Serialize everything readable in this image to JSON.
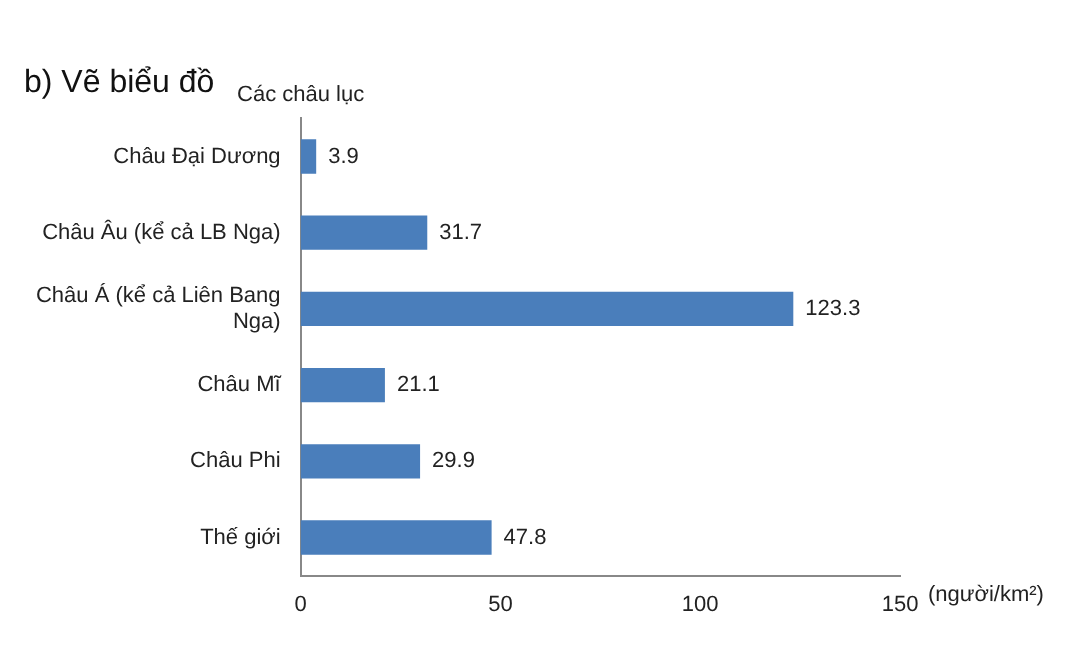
{
  "chart_data": {
    "type": "bar",
    "orientation": "horizontal",
    "title": "b) Vẽ biểu đồ",
    "ylabel": "Các châu lục",
    "xlabel": "(người/km²)",
    "categories": [
      "Châu Đại Dương",
      "Châu Âu (kể cả LB Nga)",
      "Châu Á (kể cả Liên Bang Nga)",
      "Châu Mĩ",
      "Châu Phi",
      "Thế giới"
    ],
    "values": [
      3.9,
      31.7,
      123.3,
      21.1,
      29.9,
      47.8
    ],
    "color": "#4a7ebb",
    "xlim": [
      0,
      150
    ],
    "xticks": [
      0,
      50,
      100,
      150
    ],
    "grid": false,
    "legend": false,
    "data_labels": true
  }
}
